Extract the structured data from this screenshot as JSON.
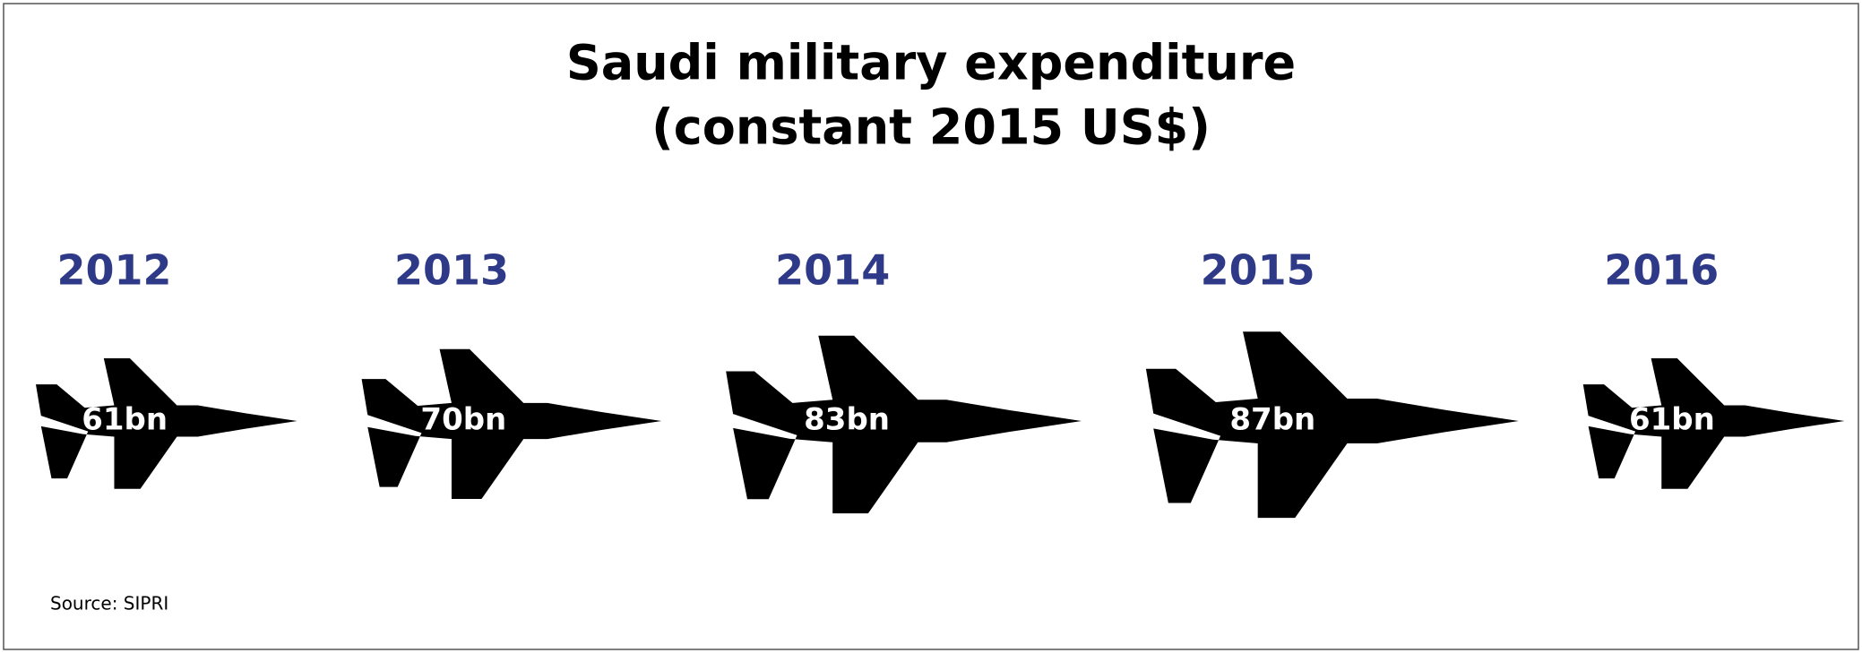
{
  "chart_data": {
    "type": "pictograph",
    "title": "Saudi military expenditure",
    "subtitle": "(constant 2015 US$)",
    "categories": [
      "2012",
      "2013",
      "2014",
      "2015",
      "2016"
    ],
    "values": [
      61,
      70,
      83,
      87,
      61
    ],
    "value_labels": [
      "61bn",
      "70bn",
      "83bn",
      "87bn",
      "61bn"
    ],
    "color": "#000000",
    "category_color": "#2e3a87",
    "source": "Source: SIPRI"
  }
}
